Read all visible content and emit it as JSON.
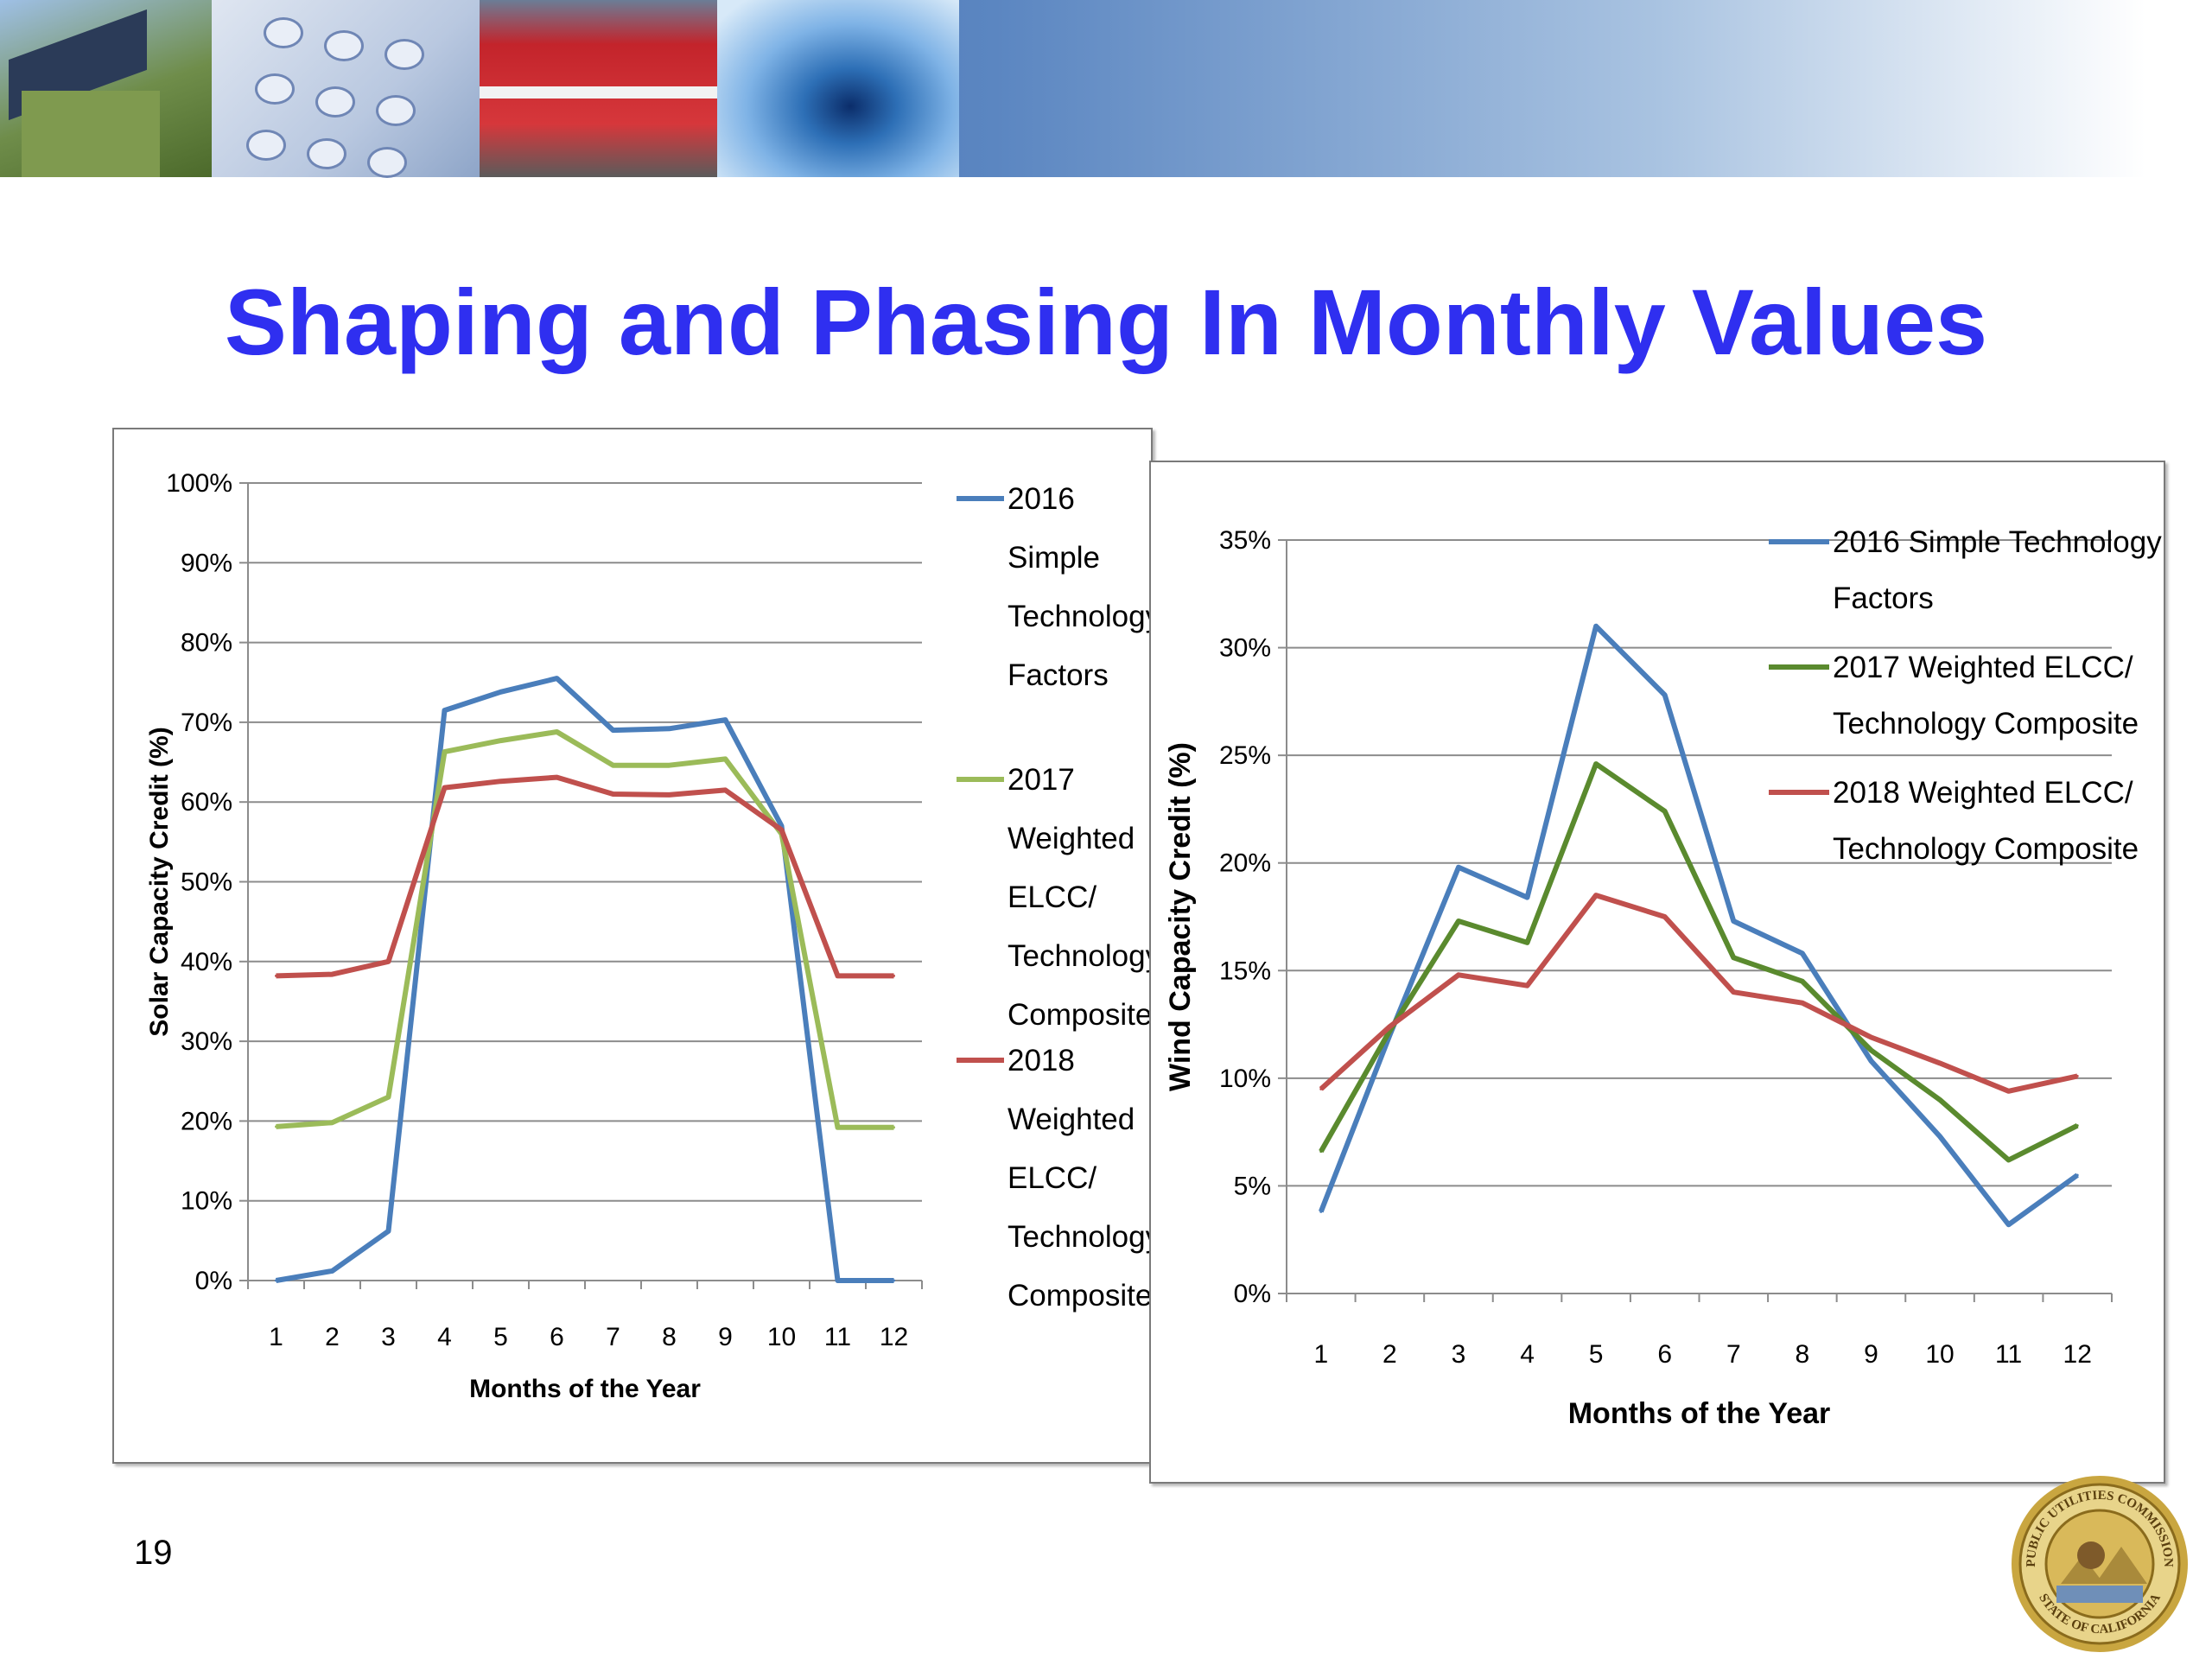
{
  "slide": {
    "title": "Shaping and Phasing In Monthly Values",
    "page_number": "19"
  },
  "banner": {
    "images": [
      "house-solar-photo",
      "phone-keypad-photo",
      "train-photo",
      "water-drop-photo"
    ]
  },
  "seal": {
    "text_top": "PUBLIC UTILITIES COMMISSION",
    "text_bottom": "STATE OF CALIFORNIA"
  },
  "colors": {
    "title": "#2f2ff0",
    "series_2016": "#4a7ebb",
    "series_2017_solar": "#9bbb59",
    "series_2017_wind": "#5a8a2e",
    "series_2018": "#c0504d",
    "grid": "#8c8c8c"
  },
  "chart_data": [
    {
      "id": "solar",
      "type": "line",
      "xlabel": "Months of the Year",
      "ylabel": "Solar Capacity Credit (%)",
      "x": [
        1,
        2,
        3,
        4,
        5,
        6,
        7,
        8,
        9,
        10,
        11,
        12
      ],
      "y_ticks": [
        "0%",
        "10%",
        "20%",
        "30%",
        "40%",
        "50%",
        "60%",
        "70%",
        "80%",
        "90%",
        "100%"
      ],
      "ylim": [
        0,
        100
      ],
      "grid": true,
      "legend_position": "right",
      "series": [
        {
          "name": "2016 Simple Technology Factors",
          "legend_lines": [
            "2016",
            "Simple",
            "Technology",
            "Factors"
          ],
          "color": "#4a7ebb",
          "values": [
            0,
            1.2,
            6.2,
            71.5,
            73.8,
            75.5,
            69,
            69.2,
            70.3,
            57,
            0,
            0
          ]
        },
        {
          "name": "2017 Weighted ELCC/ Technology Composite",
          "legend_lines": [
            "2017",
            "Weighted",
            "ELCC/",
            "Technology",
            "Composite"
          ],
          "color": "#9bbb59",
          "values": [
            19.3,
            19.8,
            23,
            66.3,
            67.7,
            68.8,
            64.6,
            64.6,
            65.4,
            56,
            19.2,
            19.2
          ]
        },
        {
          "name": "2018 Weighted ELCC/ Technology Composite",
          "legend_lines": [
            "2018",
            "Weighted",
            "ELCC/",
            "Technology",
            "Composite"
          ],
          "color": "#c0504d",
          "values": [
            38.2,
            38.4,
            40,
            61.8,
            62.6,
            63.1,
            61,
            60.9,
            61.5,
            56.5,
            38.2,
            38.2
          ]
        }
      ]
    },
    {
      "id": "wind",
      "type": "line",
      "xlabel": "Months of the Year",
      "ylabel": "Wind Capacity Credit (%)",
      "x": [
        1,
        2,
        3,
        4,
        5,
        6,
        7,
        8,
        9,
        10,
        11,
        12
      ],
      "y_ticks": [
        "0%",
        "5%",
        "10%",
        "15%",
        "20%",
        "25%",
        "30%",
        "35%"
      ],
      "ylim": [
        0,
        35
      ],
      "grid": true,
      "legend_position": "top-right",
      "series": [
        {
          "name": "2016 Simple Technology Factors",
          "legend_lines": [
            "2016 Simple Technology",
            "Factors"
          ],
          "color": "#4a7ebb",
          "values": [
            3.8,
            12,
            19.8,
            18.4,
            31,
            27.8,
            17.3,
            15.8,
            10.8,
            7.3,
            3.2,
            5.5
          ]
        },
        {
          "name": "2017 Weighted ELCC/ Technology Composite",
          "legend_lines": [
            "2017 Weighted ELCC/",
            "Technology Composite"
          ],
          "color": "#5a8a2e",
          "values": [
            6.6,
            12.2,
            17.3,
            16.3,
            24.6,
            22.4,
            15.6,
            14.5,
            11.3,
            9,
            6.2,
            7.8
          ]
        },
        {
          "name": "2018 Weighted ELCC/ Technology Composite",
          "legend_lines": [
            "2018 Weighted ELCC/",
            "Technology Composite"
          ],
          "color": "#c0504d",
          "values": [
            9.5,
            12.4,
            14.8,
            14.3,
            18.5,
            17.5,
            14,
            13.5,
            11.9,
            10.7,
            9.4,
            10.1
          ]
        }
      ]
    }
  ]
}
